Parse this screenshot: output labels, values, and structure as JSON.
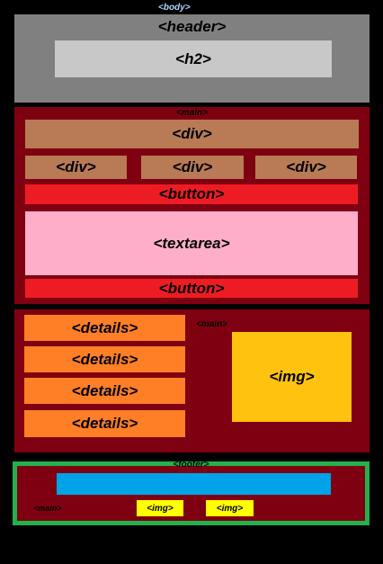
{
  "body": {
    "tag": "<body>"
  },
  "header": {
    "tag": "<header>",
    "h2": "<h2>"
  },
  "main_top": {
    "tag": "<main>",
    "div_wide": "<div>",
    "divs": [
      "<div>",
      "<div>",
      "<div>"
    ],
    "button_top": "<button>",
    "textarea": "<textarea>",
    "button_bottom": "<button>"
  },
  "main_middle": {
    "tag": "<main>",
    "details": [
      "<details>",
      "<details>",
      "<details>",
      "<details>"
    ],
    "img": "<img>"
  },
  "footer": {
    "tag": "<footer>",
    "main_tag": "<main>",
    "imgs": [
      "<img>",
      "<img>"
    ]
  },
  "colors": {
    "background": "#000000",
    "header": "#808080",
    "h2": "#c8c8c8",
    "main": "#7f0010",
    "div": "#b87b56",
    "button": "#ed1c24",
    "textarea": "#ffaec9",
    "details": "#ff7f27",
    "img_large": "#ffc20e",
    "footer_border": "#22b14c",
    "footer_bar": "#00a2e8",
    "img_small": "#ffff00",
    "body_label": "#aad4ff"
  }
}
